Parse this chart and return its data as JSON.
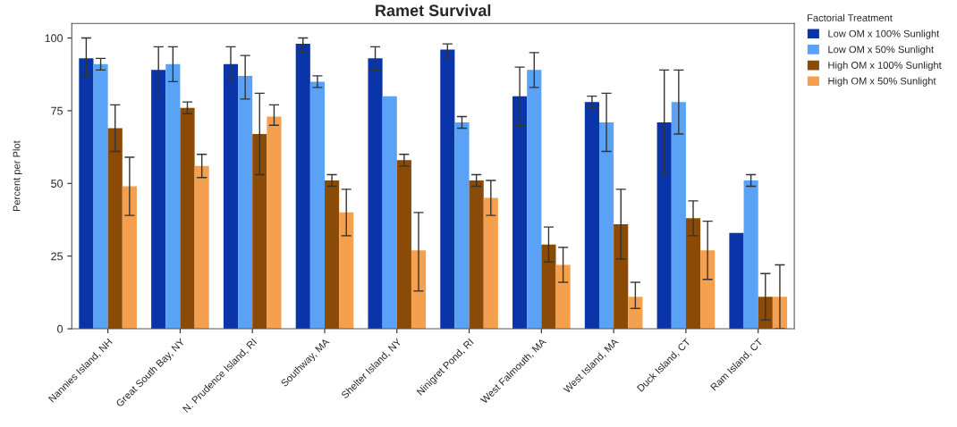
{
  "chart_data": {
    "type": "bar",
    "title": "Ramet Survival",
    "ylabel": "Percent per Plot",
    "legend_title": "Factorial Treatment",
    "legend": "top right",
    "grid": false,
    "categories": [
      "Nannies Island, NH",
      "Great South Bay, NY",
      "N. Prudence Island, RI",
      "Southway, MA",
      "Shelter Island, NY",
      "Ninigret Pond, RI",
      "West Falmouth, MA",
      "West Island, MA",
      "Duck Island, CT",
      "Ram Island, CT"
    ],
    "ylim": [
      0,
      105
    ],
    "yticks": [
      0,
      25,
      50,
      75,
      100
    ],
    "series": [
      {
        "name": "Low OM x 100% Sunlight",
        "color": "#0a35a8",
        "values": [
          93,
          89,
          91,
          98,
          93,
          96,
          80,
          78,
          71,
          33
        ],
        "errors": [
          [
            87,
            100
          ],
          [
            80,
            97
          ],
          [
            85,
            97
          ],
          [
            95,
            100
          ],
          [
            89,
            97
          ],
          [
            93,
            98
          ],
          [
            70,
            90
          ],
          [
            76,
            80
          ],
          [
            53,
            89
          ],
          null
        ]
      },
      {
        "name": "Low OM x 50% Sunlight",
        "color": "#5aa2f5",
        "values": [
          91,
          91,
          87,
          85,
          80,
          71,
          89,
          71,
          78,
          51
        ],
        "errors": [
          [
            89,
            93
          ],
          [
            85,
            97
          ],
          [
            79,
            94
          ],
          [
            83,
            87
          ],
          null,
          [
            69,
            73
          ],
          [
            83,
            95
          ],
          [
            61,
            81
          ],
          [
            67,
            89
          ],
          [
            49,
            53
          ]
        ]
      },
      {
        "name": "High OM x 100% Sunlight",
        "color": "#8b4a06",
        "values": [
          69,
          76,
          67,
          51,
          58,
          51,
          29,
          36,
          38,
          11
        ],
        "errors": [
          [
            61,
            77
          ],
          [
            74,
            78
          ],
          [
            53,
            81
          ],
          [
            49,
            53
          ],
          [
            56,
            60
          ],
          [
            49,
            53
          ],
          [
            23,
            35
          ],
          [
            24,
            48
          ],
          [
            32,
            44
          ],
          [
            3,
            19
          ]
        ]
      },
      {
        "name": "High OM x 50% Sunlight",
        "color": "#f5a04e",
        "values": [
          49,
          56,
          73,
          40,
          27,
          45,
          22,
          11,
          27,
          11
        ],
        "errors": [
          [
            39,
            59
          ],
          [
            52,
            60
          ],
          [
            70,
            77
          ],
          [
            32,
            48
          ],
          [
            13,
            40
          ],
          [
            39,
            51
          ],
          [
            16,
            28
          ],
          [
            7,
            16
          ],
          [
            17,
            37
          ],
          [
            0,
            22
          ]
        ]
      }
    ]
  }
}
